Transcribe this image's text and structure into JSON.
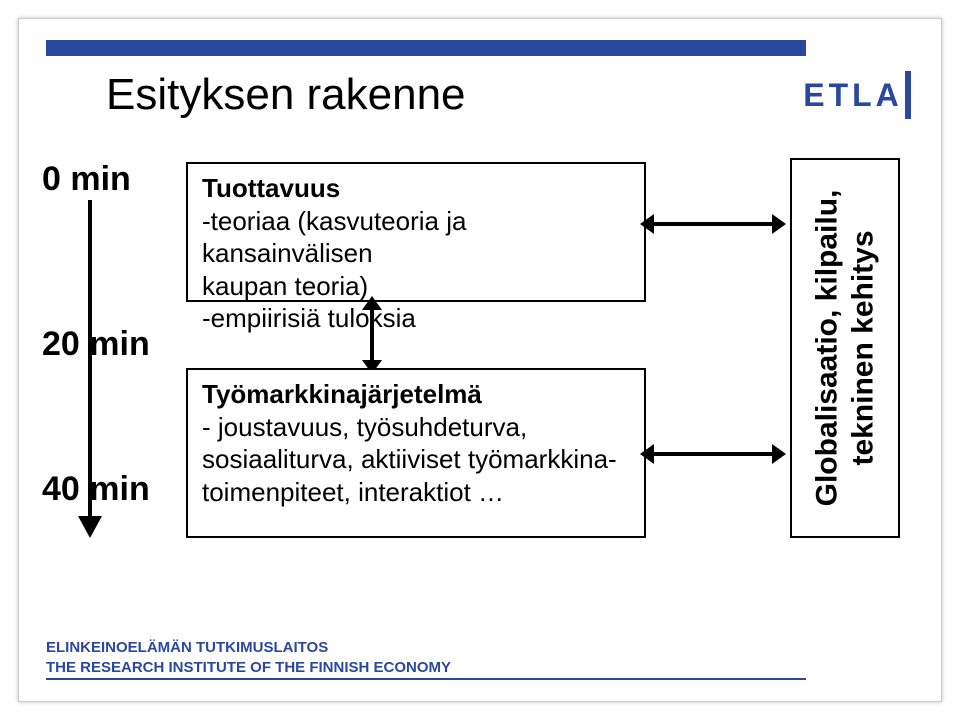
{
  "colors": {
    "brand": "#2b489e",
    "text": "#000000",
    "bg": "#ffffff"
  },
  "layout": {
    "slide_w": 960,
    "slide_h": 720
  },
  "title": "Esityksen rakenne",
  "logo_text": "ETLA",
  "timeline": {
    "labels": [
      "0 min",
      "20 min",
      "40 min"
    ]
  },
  "box1": {
    "title": "Tuottavuus",
    "line2": "-teoriaa (kasvuteoria ja kansainvälisen",
    "line3": " kaupan teoria)",
    "line4": "-empiirisiä tuloksia"
  },
  "box2": {
    "title": "Työmarkkinajärjetelmä",
    "line2": "- joustavuus, työsuhdeturva,",
    "line3": "sosiaaliturva, aktiiviset työmarkkina-",
    "line4": "toimenpiteet, interaktiot …"
  },
  "sidebox": {
    "line1": "Globalisaatio, kilpailu,",
    "line2": "tekninen kehitys"
  },
  "footer": {
    "line1": "ELINKEINOELÄMÄN TUTKIMUSLAITOS",
    "line2": "THE RESEARCH INSTITUTE OF THE FINNISH ECONOMY"
  }
}
